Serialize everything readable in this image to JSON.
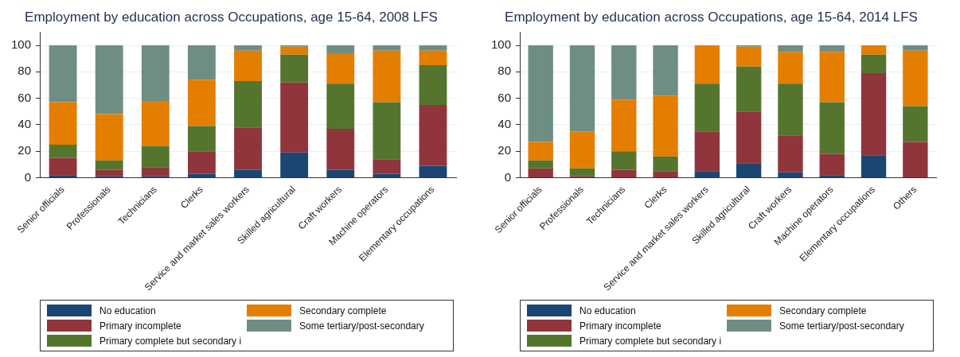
{
  "chart_data": [
    {
      "type": "bar",
      "title": "Employment by education across Occupations, age 15-64, 2008 LFS",
      "stacked": true,
      "legend": "bottom",
      "grid": "y",
      "categories": [
        "Senior officials",
        "Professionals",
        "Technicians",
        "Clerks",
        "Service and market sales workers",
        "Skilled agricultural",
        "Craft workers",
        "Machine operators",
        "Elementary occupations"
      ],
      "ylim": [
        0,
        110
      ],
      "yticks": [
        0,
        20,
        40,
        60,
        80,
        100
      ],
      "series": [
        {
          "name": "No education",
          "color": "#1b4671",
          "values": [
            2,
            1,
            1,
            3,
            6,
            19,
            6,
            3,
            9
          ]
        },
        {
          "name": "Primary incomplete",
          "color": "#90353b",
          "values": [
            13,
            5,
            7,
            17,
            32,
            53,
            31,
            11,
            46
          ]
        },
        {
          "name": "Primary complete but secondary i",
          "color": "#55752f",
          "values": [
            10,
            7,
            16,
            19,
            35,
            21,
            34,
            43,
            30
          ]
        },
        {
          "name": "Secondary complete",
          "color": "#e37e00",
          "values": [
            32,
            35,
            34,
            35,
            23,
            6,
            23,
            39,
            11
          ]
        },
        {
          "name": "Some tertiary/post-secondary",
          "color": "#6e8e84",
          "values": [
            43,
            52,
            42,
            26,
            4,
            1,
            6,
            4,
            4
          ]
        }
      ]
    },
    {
      "type": "bar",
      "title": "Employment by education across Occupations, age 15-64, 2014 LFS",
      "stacked": true,
      "legend": "bottom",
      "grid": "y",
      "categories": [
        "Senior officials",
        "Professionals",
        "Technicians",
        "Clerks",
        "Service and market sales workers",
        "Skilled agricultural",
        "Craft workers",
        "Machine operators",
        "Elementary occupations",
        "Others"
      ],
      "ylim": [
        0,
        110
      ],
      "yticks": [
        0,
        20,
        40,
        60,
        80,
        100
      ],
      "series": [
        {
          "name": "No education",
          "color": "#1b4671",
          "values": [
            0,
            0,
            0,
            0,
            5,
            11,
            4,
            2,
            17,
            0
          ]
        },
        {
          "name": "Primary incomplete",
          "color": "#90353b",
          "values": [
            7,
            1,
            6,
            5,
            30,
            39,
            28,
            16,
            62,
            27
          ]
        },
        {
          "name": "Primary complete but secondary i",
          "color": "#55752f",
          "values": [
            6,
            6,
            14,
            11,
            36,
            34,
            39,
            39,
            14,
            27
          ]
        },
        {
          "name": "Secondary complete",
          "color": "#e37e00",
          "values": [
            14,
            28,
            39,
            46,
            29,
            15,
            24,
            38,
            7,
            42
          ]
        },
        {
          "name": "Some tertiary/post-secondary",
          "color": "#6e8e84",
          "values": [
            73,
            65,
            41,
            38,
            0,
            1,
            5,
            5,
            0,
            4
          ]
        }
      ]
    }
  ]
}
